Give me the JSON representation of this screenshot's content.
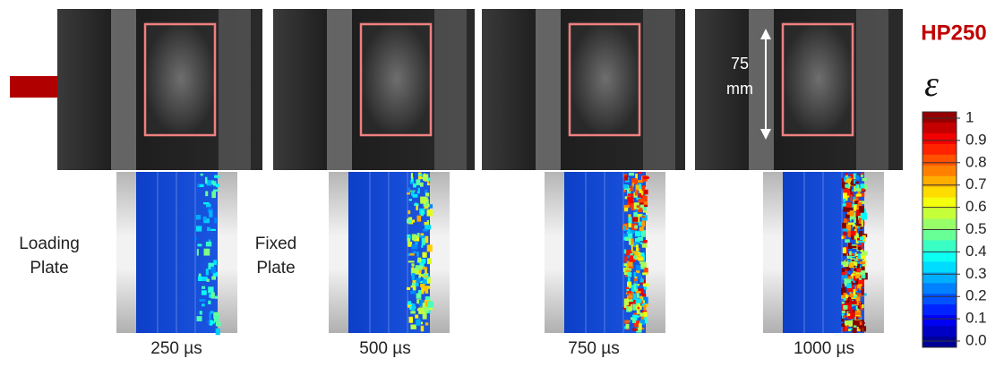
{
  "title": "HP250",
  "colorbar": {
    "symbol": "ε",
    "lim": [
      0,
      1
    ],
    "ticks": [
      1,
      0.9,
      0.8,
      0.7,
      0.6,
      0.5,
      0.4,
      0.3,
      0.2,
      0.1,
      {
        "value": 0,
        "label": "0.0"
      }
    ]
  },
  "scale_bar": {
    "value": "75",
    "unit": "mm"
  },
  "plate_labels": [
    {
      "line1": "Loading",
      "line2": "Plate"
    },
    {
      "line1": "Fixed",
      "line2": "Plate"
    }
  ],
  "panels": [
    {
      "time": "250 µs"
    },
    {
      "time": "500 µs"
    },
    {
      "time": "750 µs"
    },
    {
      "time": "1000 µs"
    }
  ]
}
